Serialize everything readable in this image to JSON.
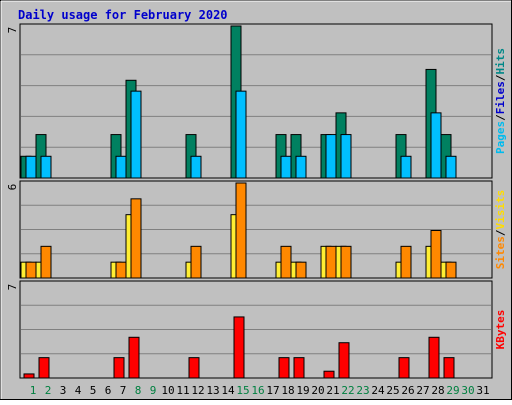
{
  "chart_data": {
    "type": "bar",
    "title": "Daily usage for February 2020",
    "days": [
      "1",
      "2",
      "3",
      "4",
      "5",
      "6",
      "7",
      "8",
      "9",
      "10",
      "11",
      "12",
      "13",
      "14",
      "15",
      "16",
      "17",
      "18",
      "19",
      "20",
      "21",
      "22",
      "23",
      "24",
      "25",
      "26",
      "27",
      "28",
      "29",
      "30",
      "31"
    ],
    "weekend_days": [
      "1",
      "2",
      "8",
      "9",
      "15",
      "16",
      "22",
      "23",
      "29",
      "30"
    ],
    "panels": [
      {
        "id": "hits",
        "ymax": 7,
        "max_label": "7",
        "axis_label": [
          "Pages",
          "/",
          "Files",
          "/",
          "Hits"
        ],
        "axis_label_colors": [
          "#00bbee",
          "#000000",
          "#0000cc",
          "#000000",
          "#008888"
        ],
        "series": [
          {
            "key": "hits",
            "color": "#008060",
            "values": [
              1,
              2,
              0,
              0,
              0,
              0,
              2,
              4.5,
              0,
              0,
              0,
              2,
              0,
              0,
              7,
              0,
              0,
              2,
              2,
              0,
              2,
              3,
              0,
              0,
              0,
              2,
              0,
              5,
              2,
              0,
              0
            ]
          },
          {
            "key": "files",
            "color": "#00bfff",
            "values": [
              1,
              1,
              0,
              0,
              0,
              0,
              1,
              4,
              0,
              0,
              0,
              1,
              0,
              0,
              4,
              0,
              0,
              1,
              1,
              0,
              2,
              2,
              0,
              0,
              0,
              1,
              0,
              3,
              1,
              0,
              0
            ]
          },
          {
            "key": "pages",
            "color": "#00bfff",
            "values": [
              0,
              0,
              0,
              0,
              0,
              0,
              0,
              0,
              0,
              0,
              0,
              0,
              0,
              0,
              0,
              0,
              0,
              0,
              0,
              0,
              0,
              0,
              0,
              0,
              0,
              0,
              0,
              0,
              0,
              0,
              0
            ]
          }
        ]
      },
      {
        "id": "visits",
        "ymax": 6,
        "max_label": "6",
        "axis_label": [
          "Sites",
          "/",
          "Visits"
        ],
        "axis_label_colors": [
          "#ff8800",
          "#000000",
          "#ffdd00"
        ],
        "series": [
          {
            "key": "visits",
            "color": "#ffee33",
            "values": [
              1,
              1,
              0,
              0,
              0,
              0,
              1,
              4,
              0,
              0,
              0,
              1,
              0,
              0,
              4,
              0,
              0,
              1,
              1,
              0,
              2,
              2,
              0,
              0,
              0,
              1,
              0,
              2,
              1,
              0,
              0
            ]
          },
          {
            "key": "sites",
            "color": "#ff8800",
            "values": [
              1,
              2,
              0,
              0,
              0,
              0,
              1,
              5,
              0,
              0,
              0,
              2,
              0,
              0,
              6,
              0,
              0,
              2,
              1,
              0,
              2,
              2,
              0,
              0,
              0,
              2,
              0,
              3,
              1,
              0,
              0
            ]
          }
        ]
      },
      {
        "id": "kbytes",
        "ymax": 7,
        "max_label": "7",
        "axis_label": [
          "KBytes"
        ],
        "axis_label_colors": [
          "#ff0000"
        ],
        "series": [
          {
            "key": "kbytes",
            "color": "#ff0000",
            "values": [
              0.3,
              1.5,
              0,
              0,
              0,
              0,
              1.5,
              3,
              0,
              0,
              0,
              1.5,
              0,
              0,
              4.5,
              0,
              0,
              1.5,
              1.5,
              0,
              0.5,
              2.6,
              0,
              0,
              0,
              1.5,
              0,
              3,
              1.5,
              0,
              0
            ]
          }
        ]
      }
    ],
    "colors": {
      "background": "#c0c0c0",
      "gridline": "#808080",
      "title": "#0000cc",
      "weekday_label": "#000000",
      "weekend_label": "#008040"
    }
  }
}
